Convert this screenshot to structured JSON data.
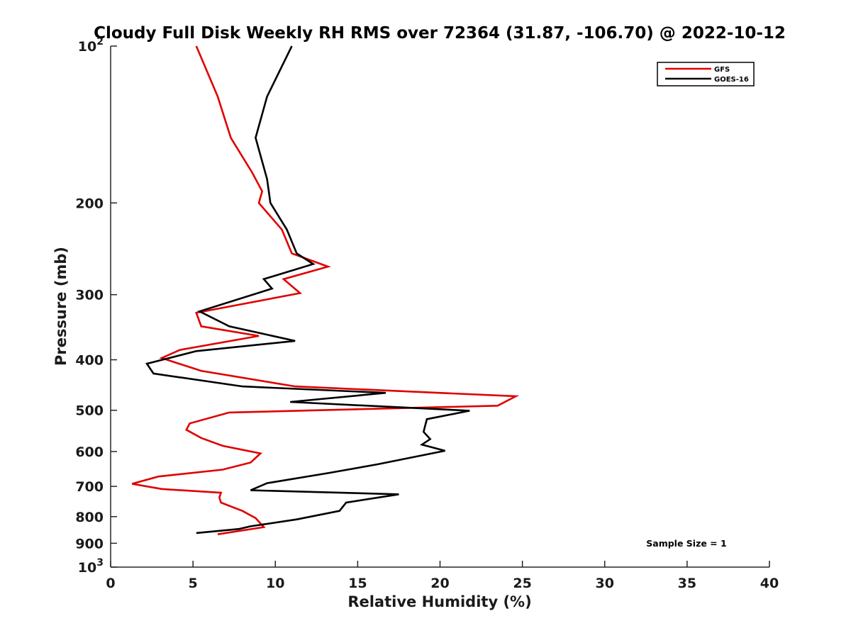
{
  "chart_data": {
    "type": "line",
    "title": "Cloudy Full Disk Weekly RH RMS over 72364 (31.87, -106.70) @ 2022-10-12",
    "xlabel": "Relative Humidity (%)",
    "ylabel": "Pressure (mb)",
    "xlim": [
      0,
      40
    ],
    "ylim": [
      100,
      1000
    ],
    "y_scale": "log",
    "y_reversed": true,
    "x_ticks": [
      0,
      5,
      10,
      15,
      20,
      25,
      30,
      35,
      40
    ],
    "x_tick_labels": [
      "0",
      "5",
      "10",
      "15",
      "20",
      "25",
      "30",
      "35",
      "40"
    ],
    "y_ticks": [
      100,
      200,
      300,
      400,
      500,
      600,
      700,
      800,
      900,
      1000
    ],
    "y_tick_labels": [
      {
        "base": "10",
        "exp": "2"
      },
      {
        "base": "200",
        "exp": ""
      },
      {
        "base": "300",
        "exp": ""
      },
      {
        "base": "400",
        "exp": ""
      },
      {
        "base": "500",
        "exp": ""
      },
      {
        "base": "600",
        "exp": ""
      },
      {
        "base": "700",
        "exp": ""
      },
      {
        "base": "800",
        "exp": ""
      },
      {
        "base": "900",
        "exp": ""
      },
      {
        "base": "10",
        "exp": "3"
      }
    ],
    "grid": false,
    "legend_position": "top-right",
    "annotation": "Sample Size = 1",
    "series": [
      {
        "name": "GFS",
        "color": "#e00000",
        "points": [
          [
            5.2,
            100
          ],
          [
            6.5,
            125
          ],
          [
            7.3,
            150
          ],
          [
            8.6,
            175
          ],
          [
            9.2,
            190
          ],
          [
            9.0,
            200
          ],
          [
            10.4,
            225
          ],
          [
            11.0,
            250
          ],
          [
            13.2,
            265
          ],
          [
            10.5,
            280
          ],
          [
            11.5,
            298
          ],
          [
            5.2,
            325
          ],
          [
            5.5,
            345
          ],
          [
            9.0,
            360
          ],
          [
            4.2,
            383
          ],
          [
            3.1,
            397
          ],
          [
            5.5,
            420
          ],
          [
            11.2,
            450
          ],
          [
            24.6,
            470
          ],
          [
            23.5,
            490
          ],
          [
            7.2,
            505
          ],
          [
            4.8,
            530
          ],
          [
            4.6,
            545
          ],
          [
            5.5,
            565
          ],
          [
            6.8,
            585
          ],
          [
            9.1,
            605
          ],
          [
            8.5,
            630
          ],
          [
            6.8,
            650
          ],
          [
            2.9,
            670
          ],
          [
            1.3,
            692
          ],
          [
            3.1,
            708
          ],
          [
            6.7,
            720
          ],
          [
            6.6,
            735
          ],
          [
            6.7,
            752
          ],
          [
            8.0,
            780
          ],
          [
            8.8,
            805
          ],
          [
            9.3,
            838
          ],
          [
            6.5,
            865
          ]
        ]
      },
      {
        "name": "GOES-16",
        "color": "#000000",
        "points": [
          [
            11.0,
            100
          ],
          [
            9.5,
            125
          ],
          [
            8.8,
            150
          ],
          [
            9.5,
            180
          ],
          [
            9.7,
            200
          ],
          [
            10.7,
            225
          ],
          [
            11.3,
            250
          ],
          [
            12.3,
            262
          ],
          [
            9.3,
            280
          ],
          [
            9.8,
            292
          ],
          [
            5.4,
            323
          ],
          [
            7.2,
            345
          ],
          [
            11.2,
            368
          ],
          [
            5.2,
            385
          ],
          [
            2.2,
            407
          ],
          [
            2.6,
            425
          ],
          [
            8.0,
            450
          ],
          [
            16.7,
            463
          ],
          [
            10.9,
            482
          ],
          [
            21.8,
            501
          ],
          [
            19.2,
            520
          ],
          [
            19.0,
            550
          ],
          [
            19.4,
            568
          ],
          [
            18.9,
            582
          ],
          [
            20.3,
            598
          ],
          [
            16.2,
            635
          ],
          [
            13.2,
            660
          ],
          [
            9.5,
            690
          ],
          [
            8.5,
            712
          ],
          [
            17.5,
            725
          ],
          [
            14.3,
            752
          ],
          [
            13.9,
            780
          ],
          [
            11.3,
            810
          ],
          [
            8.5,
            835
          ],
          [
            7.8,
            845
          ],
          [
            5.2,
            860
          ]
        ]
      }
    ]
  },
  "colors": {
    "gfs": "#e00000",
    "goes": "#000000",
    "axis": "#262626"
  }
}
